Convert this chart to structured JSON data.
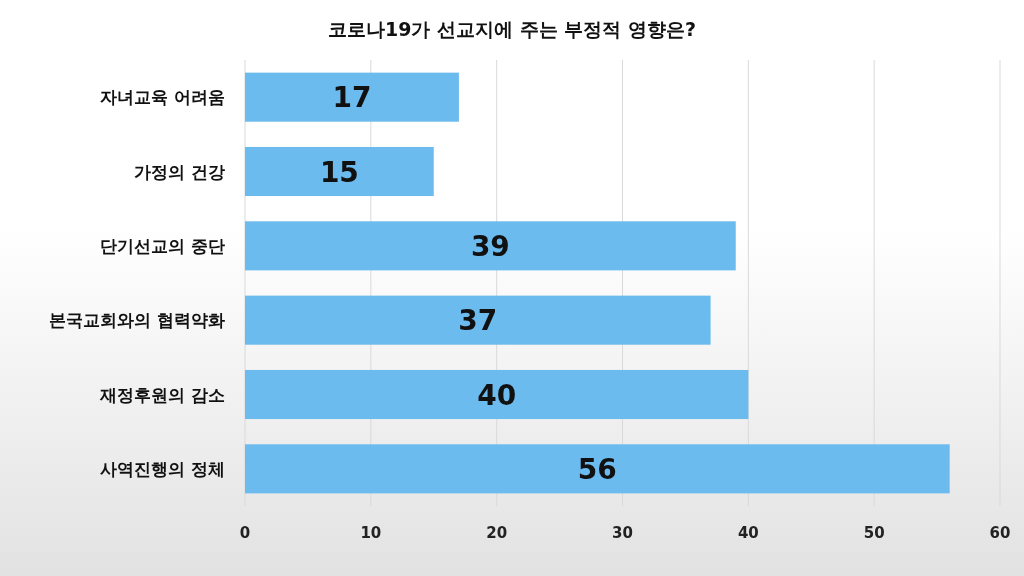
{
  "chart_data": {
    "type": "bar",
    "orientation": "horizontal",
    "title": "코로나19가 선교지에 주는 부정적 영향은?",
    "categories": [
      "자녀교육 어려움",
      "가정의 건강",
      "단기선교의 중단",
      "본국교회와의 협력약화",
      "재정후원의 감소",
      "사역진행의 정체"
    ],
    "values": [
      17,
      15,
      39,
      37,
      40,
      56
    ],
    "color": "#6bbbee",
    "xlim": [
      0,
      60
    ],
    "xticks": [
      0,
      10,
      20,
      30,
      40,
      50,
      60
    ],
    "grid": "x",
    "data_labels": true
  }
}
